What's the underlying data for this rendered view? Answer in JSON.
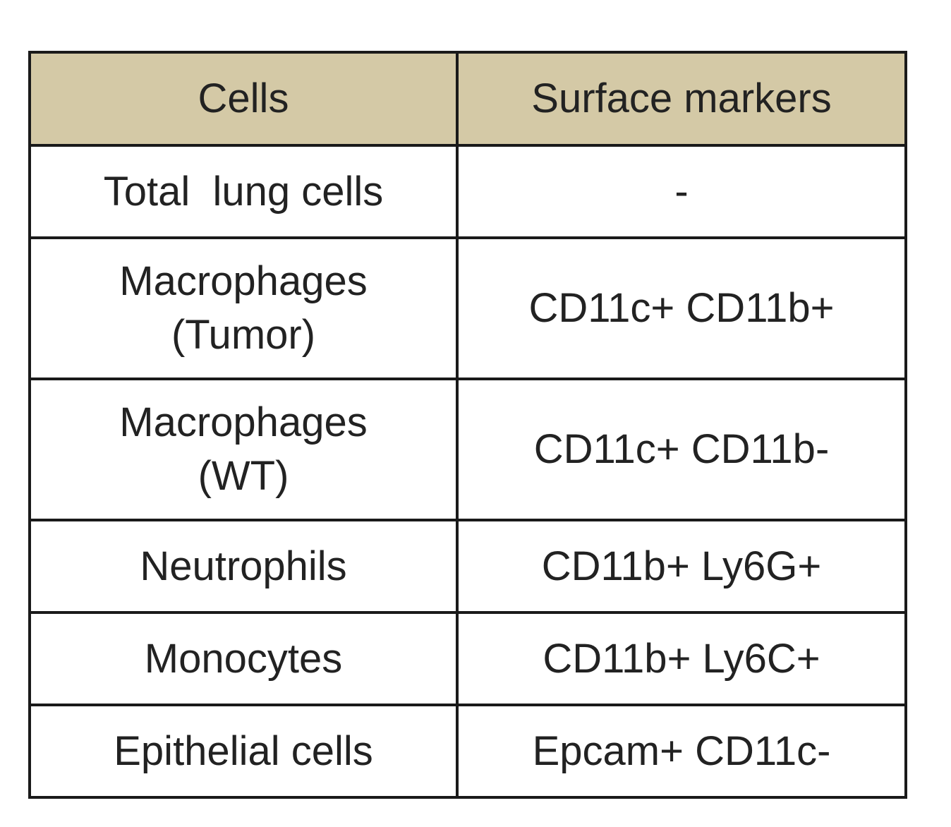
{
  "table": {
    "headers": [
      "Cells",
      "Surface markers"
    ],
    "rows": [
      {
        "cells": "Total  lung cells",
        "markers": "-"
      },
      {
        "cells_line1": "Macrophages",
        "cells_line2": "(Tumor)",
        "markers": "CD11c+ CD11b+"
      },
      {
        "cells_line1": "Macrophages",
        "cells_line2": "(WT)",
        "markers": "CD11c+ CD11b-"
      },
      {
        "cells": "Neutrophils",
        "markers": "CD11b+ Ly6G+"
      },
      {
        "cells": "Monocytes",
        "markers": "CD11b+ Ly6C+"
      },
      {
        "cells": "Epithelial cells",
        "markers": "Epcam+ CD11c-"
      }
    ]
  },
  "colors": {
    "header_background": "#d4c9a6",
    "border": "#1a1a1a",
    "text": "#222222"
  }
}
